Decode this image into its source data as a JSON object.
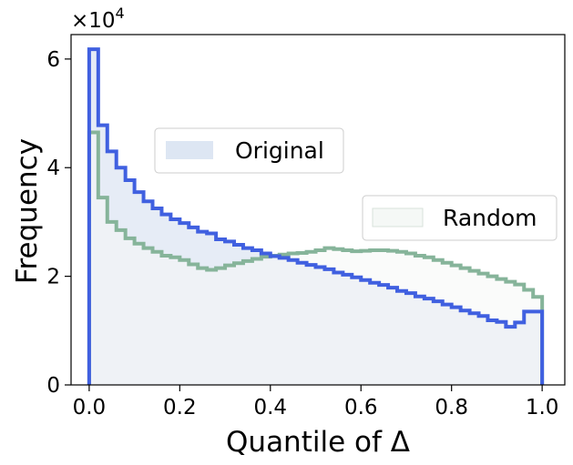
{
  "chart_data": {
    "type": "histogram",
    "xlabel": "Quantile of Δ",
    "ylabel": "Frequency",
    "y_multiplier": {
      "base": "×10",
      "exponent": "4"
    },
    "xlim": [
      -0.04,
      1.05
    ],
    "ylim": [
      0,
      6.45
    ],
    "y_scale_note": "values in units of 10^4",
    "bin_width": 0.02,
    "x_ticks": [
      0.0,
      0.2,
      0.4,
      0.6,
      0.8,
      1.0
    ],
    "x_tick_labels": [
      "0.0",
      "0.2",
      "0.4",
      "0.6",
      "0.8",
      "1.0"
    ],
    "y_ticks": [
      0,
      2,
      4,
      6
    ],
    "y_tick_labels": [
      "0",
      "2",
      "4",
      "6"
    ],
    "grid": false,
    "series": [
      {
        "name": "Original",
        "edge_color": "#4060e0",
        "fill_color": "#dde6f3",
        "values": [
          6.18,
          4.78,
          4.3,
          4.0,
          3.77,
          3.55,
          3.38,
          3.25,
          3.14,
          3.05,
          2.98,
          2.9,
          2.82,
          2.79,
          2.68,
          2.64,
          2.58,
          2.52,
          2.48,
          2.42,
          2.37,
          2.34,
          2.3,
          2.25,
          2.21,
          2.17,
          2.13,
          2.07,
          2.03,
          1.98,
          1.93,
          1.88,
          1.84,
          1.79,
          1.73,
          1.69,
          1.63,
          1.59,
          1.54,
          1.48,
          1.43,
          1.37,
          1.32,
          1.27,
          1.19,
          1.16,
          1.07,
          1.15,
          1.35,
          1.35
        ]
      },
      {
        "name": "Random",
        "edge_color": "#86b49a",
        "fill_color": "#f5f8f6",
        "values": [
          4.65,
          3.45,
          3.0,
          2.85,
          2.7,
          2.6,
          2.52,
          2.45,
          2.38,
          2.35,
          2.3,
          2.22,
          2.15,
          2.12,
          2.15,
          2.2,
          2.24,
          2.28,
          2.32,
          2.36,
          2.38,
          2.4,
          2.42,
          2.43,
          2.45,
          2.48,
          2.52,
          2.5,
          2.48,
          2.46,
          2.47,
          2.48,
          2.48,
          2.47,
          2.45,
          2.42,
          2.38,
          2.35,
          2.3,
          2.25,
          2.2,
          2.15,
          2.1,
          2.05,
          2.0,
          1.95,
          1.9,
          1.85,
          1.75,
          1.62
        ]
      }
    ],
    "legends": [
      {
        "label": "Original",
        "position": "upper-left-center"
      },
      {
        "label": "Random",
        "position": "right-center"
      }
    ]
  }
}
